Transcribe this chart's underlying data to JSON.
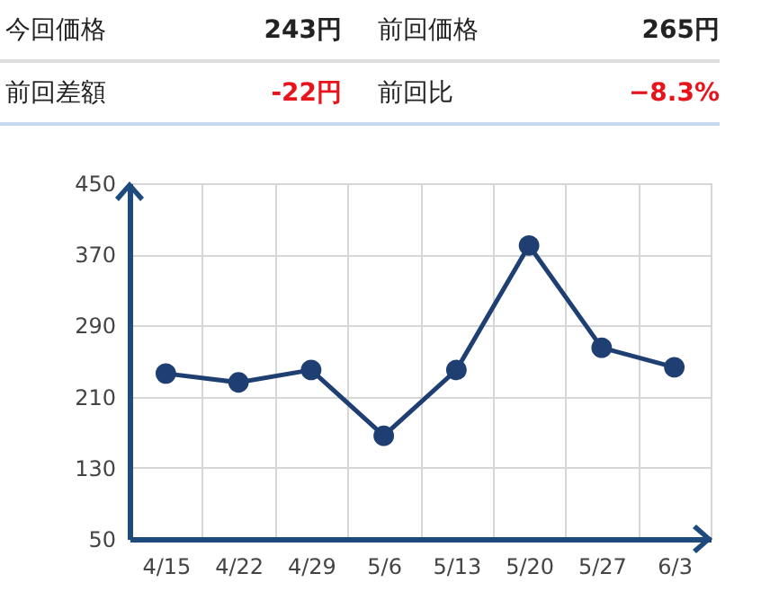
{
  "chart_data": {
    "type": "line",
    "annotations": [
      "今回価格",
      "243円",
      "前回価格",
      "265円",
      "前回差額",
      "-22円",
      "前回比",
      "−8.3%"
    ],
    "categories": [
      "4/15",
      "4/22",
      "4/29",
      "5/6",
      "5/13",
      "5/20",
      "5/27",
      "6/3"
    ],
    "series": [
      {
        "color": "#1f3f73",
        "values": [
          236,
          226,
          240,
          166,
          240,
          380,
          265,
          243
        ]
      }
    ],
    "ylim": [
      50,
      450
    ],
    "yticks": [
      50,
      130,
      210,
      290,
      370,
      450
    ],
    "grid": true,
    "marker": "circle",
    "line_style": "solid"
  }
}
